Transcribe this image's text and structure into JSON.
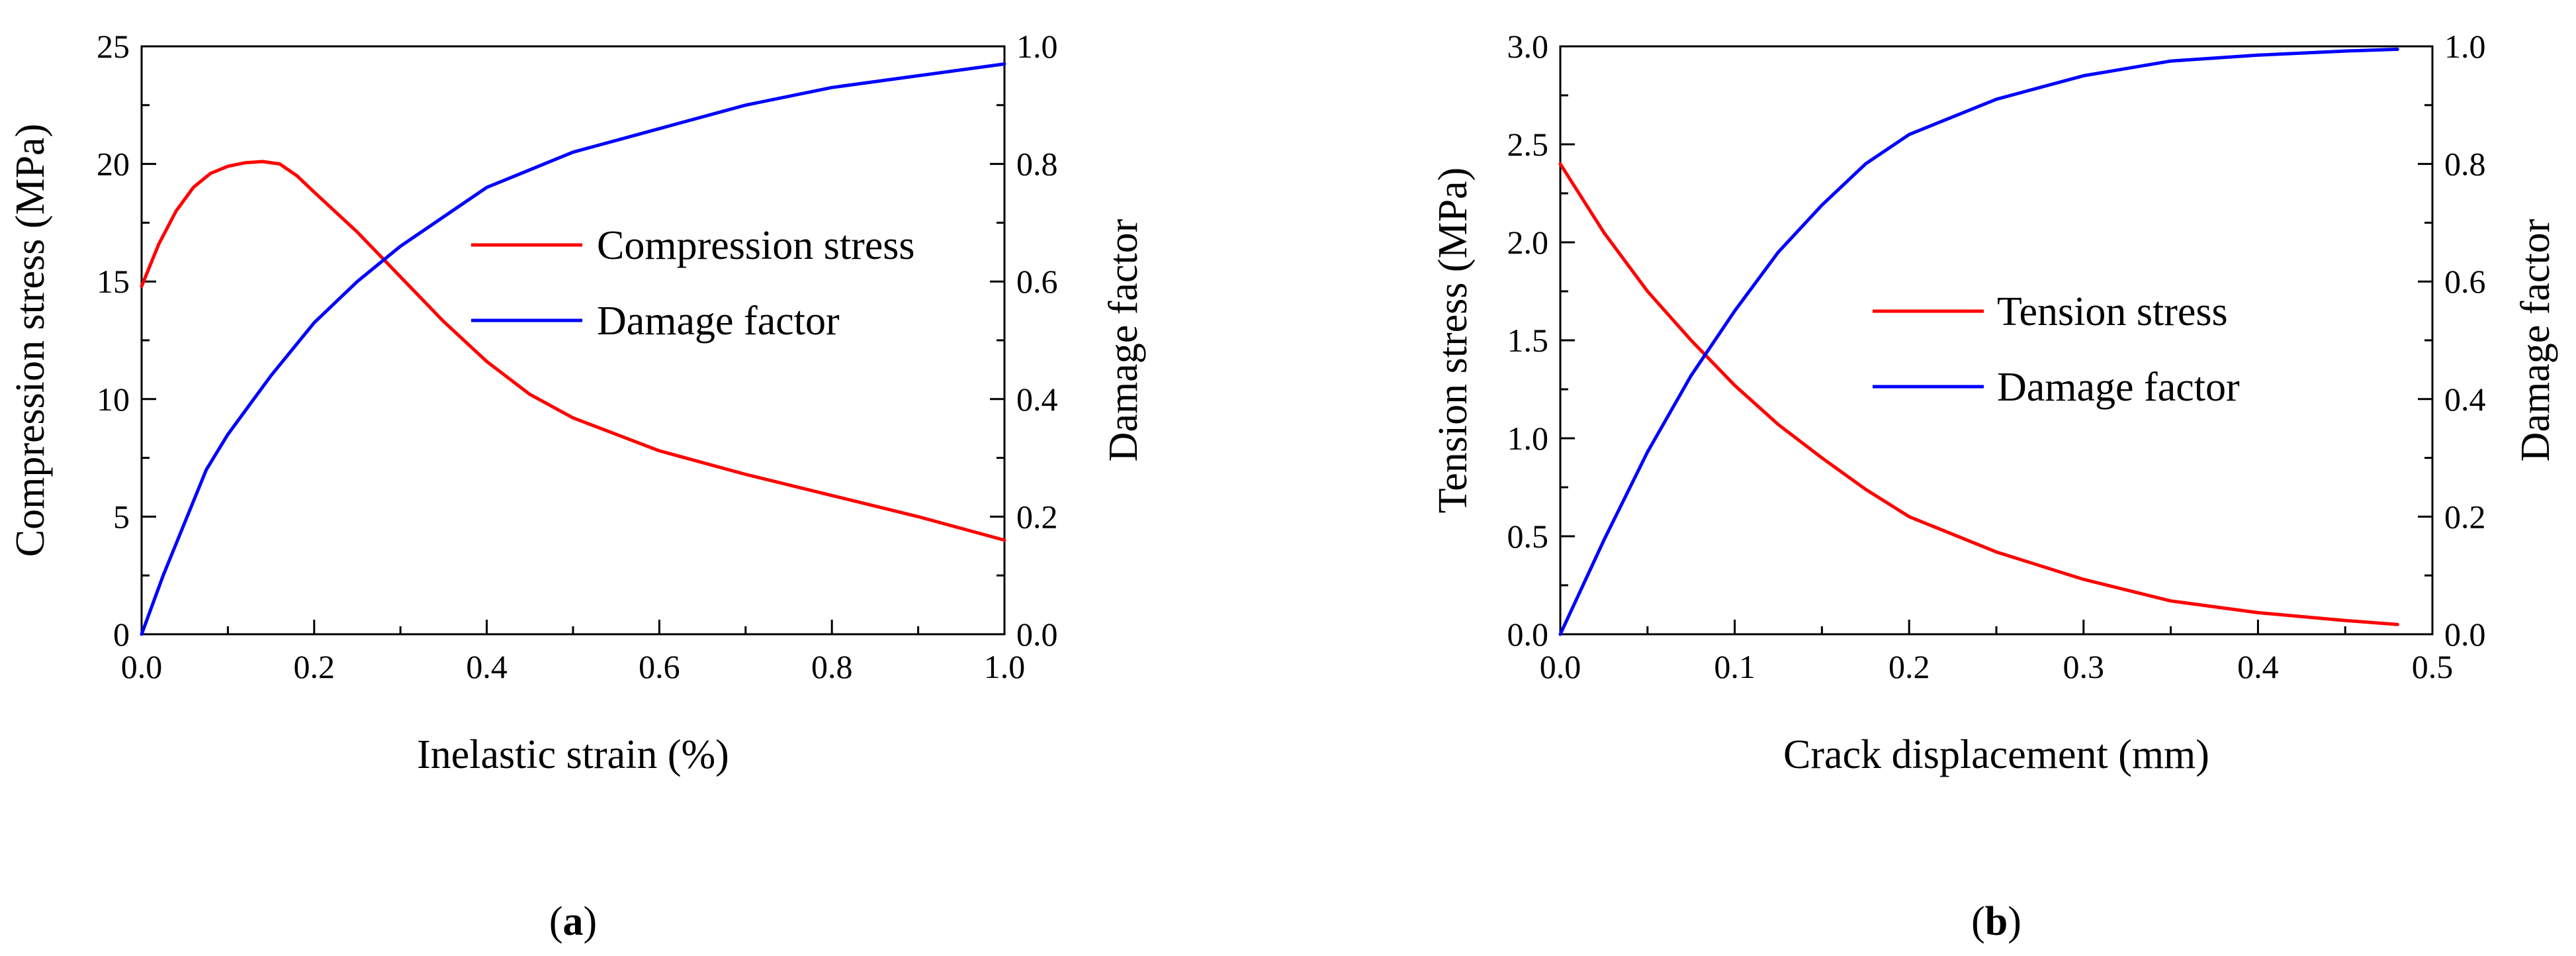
{
  "chart_data": [
    {
      "type": "line",
      "caption_open": "(",
      "caption": "a",
      "caption_close": ")",
      "xlabel": "Inelastic strain (%)",
      "ylabel": "Compression stress (MPa)",
      "y2label": "Damage factor",
      "xlim": [
        0,
        1.0
      ],
      "ylim": [
        0,
        25
      ],
      "y2lim": [
        0,
        1.0
      ],
      "xticks": [
        "0.0",
        "0.2",
        "0.4",
        "0.6",
        "0.8",
        "1.0"
      ],
      "yticks": [
        "0",
        "5",
        "10",
        "15",
        "20",
        "25"
      ],
      "y2ticks": [
        "0.0",
        "0.2",
        "0.4",
        "0.6",
        "0.8",
        "1.0"
      ],
      "legend_position": "right-middle",
      "series": [
        {
          "name": "Compression stress",
          "axis": "left",
          "color": "#ff0000",
          "x": [
            0,
            0.02,
            0.04,
            0.06,
            0.08,
            0.1,
            0.12,
            0.14,
            0.16,
            0.18,
            0.2,
            0.25,
            0.3,
            0.35,
            0.4,
            0.45,
            0.5,
            0.6,
            0.7,
            0.8,
            0.9,
            1.0
          ],
          "y": [
            14.8,
            16.6,
            18.0,
            19.0,
            19.6,
            19.9,
            20.05,
            20.1,
            20.0,
            19.5,
            18.8,
            17.1,
            15.2,
            13.3,
            11.6,
            10.2,
            9.2,
            7.8,
            6.8,
            5.9,
            5.0,
            4.0
          ]
        },
        {
          "name": "Damage factor",
          "axis": "right",
          "color": "#0000ff",
          "x": [
            0,
            0.025,
            0.05,
            0.075,
            0.1,
            0.15,
            0.2,
            0.25,
            0.3,
            0.35,
            0.4,
            0.45,
            0.5,
            0.6,
            0.7,
            0.8,
            0.9,
            1.0
          ],
          "y": [
            0.0,
            0.1,
            0.19,
            0.28,
            0.34,
            0.44,
            0.53,
            0.6,
            0.66,
            0.71,
            0.76,
            0.79,
            0.82,
            0.86,
            0.9,
            0.93,
            0.95,
            0.97
          ]
        }
      ]
    },
    {
      "type": "line",
      "caption_open": "(",
      "caption": "b",
      "caption_close": ")",
      "xlabel": "Crack displacement (mm)",
      "ylabel": "Tension stress (MPa)",
      "y2label": "Damage factor",
      "xlim": [
        0,
        0.5
      ],
      "ylim": [
        0,
        3.0
      ],
      "y2lim": [
        0,
        1.0
      ],
      "xticks": [
        "0.0",
        "0.1",
        "0.2",
        "0.3",
        "0.4",
        "0.5"
      ],
      "yticks": [
        "0.0",
        "0.5",
        "1.0",
        "1.5",
        "2.0",
        "2.5",
        "3.0"
      ],
      "y2ticks": [
        "0.0",
        "0.2",
        "0.4",
        "0.6",
        "0.8",
        "1.0"
      ],
      "legend_position": "right-middle",
      "series": [
        {
          "name": "Tension stress",
          "axis": "left",
          "color": "#ff0000",
          "x": [
            0,
            0.025,
            0.05,
            0.075,
            0.1,
            0.125,
            0.15,
            0.175,
            0.2,
            0.25,
            0.3,
            0.35,
            0.4,
            0.45,
            0.48
          ],
          "y": [
            2.4,
            2.05,
            1.75,
            1.5,
            1.27,
            1.07,
            0.9,
            0.74,
            0.6,
            0.42,
            0.28,
            0.17,
            0.11,
            0.07,
            0.05
          ]
        },
        {
          "name": "Damage factor",
          "axis": "right",
          "color": "#0000ff",
          "x": [
            0,
            0.025,
            0.05,
            0.075,
            0.1,
            0.125,
            0.15,
            0.175,
            0.2,
            0.25,
            0.3,
            0.35,
            0.4,
            0.45,
            0.48
          ],
          "y": [
            0.0,
            0.16,
            0.31,
            0.44,
            0.55,
            0.65,
            0.73,
            0.8,
            0.85,
            0.91,
            0.95,
            0.975,
            0.985,
            0.992,
            0.995
          ]
        }
      ]
    }
  ]
}
